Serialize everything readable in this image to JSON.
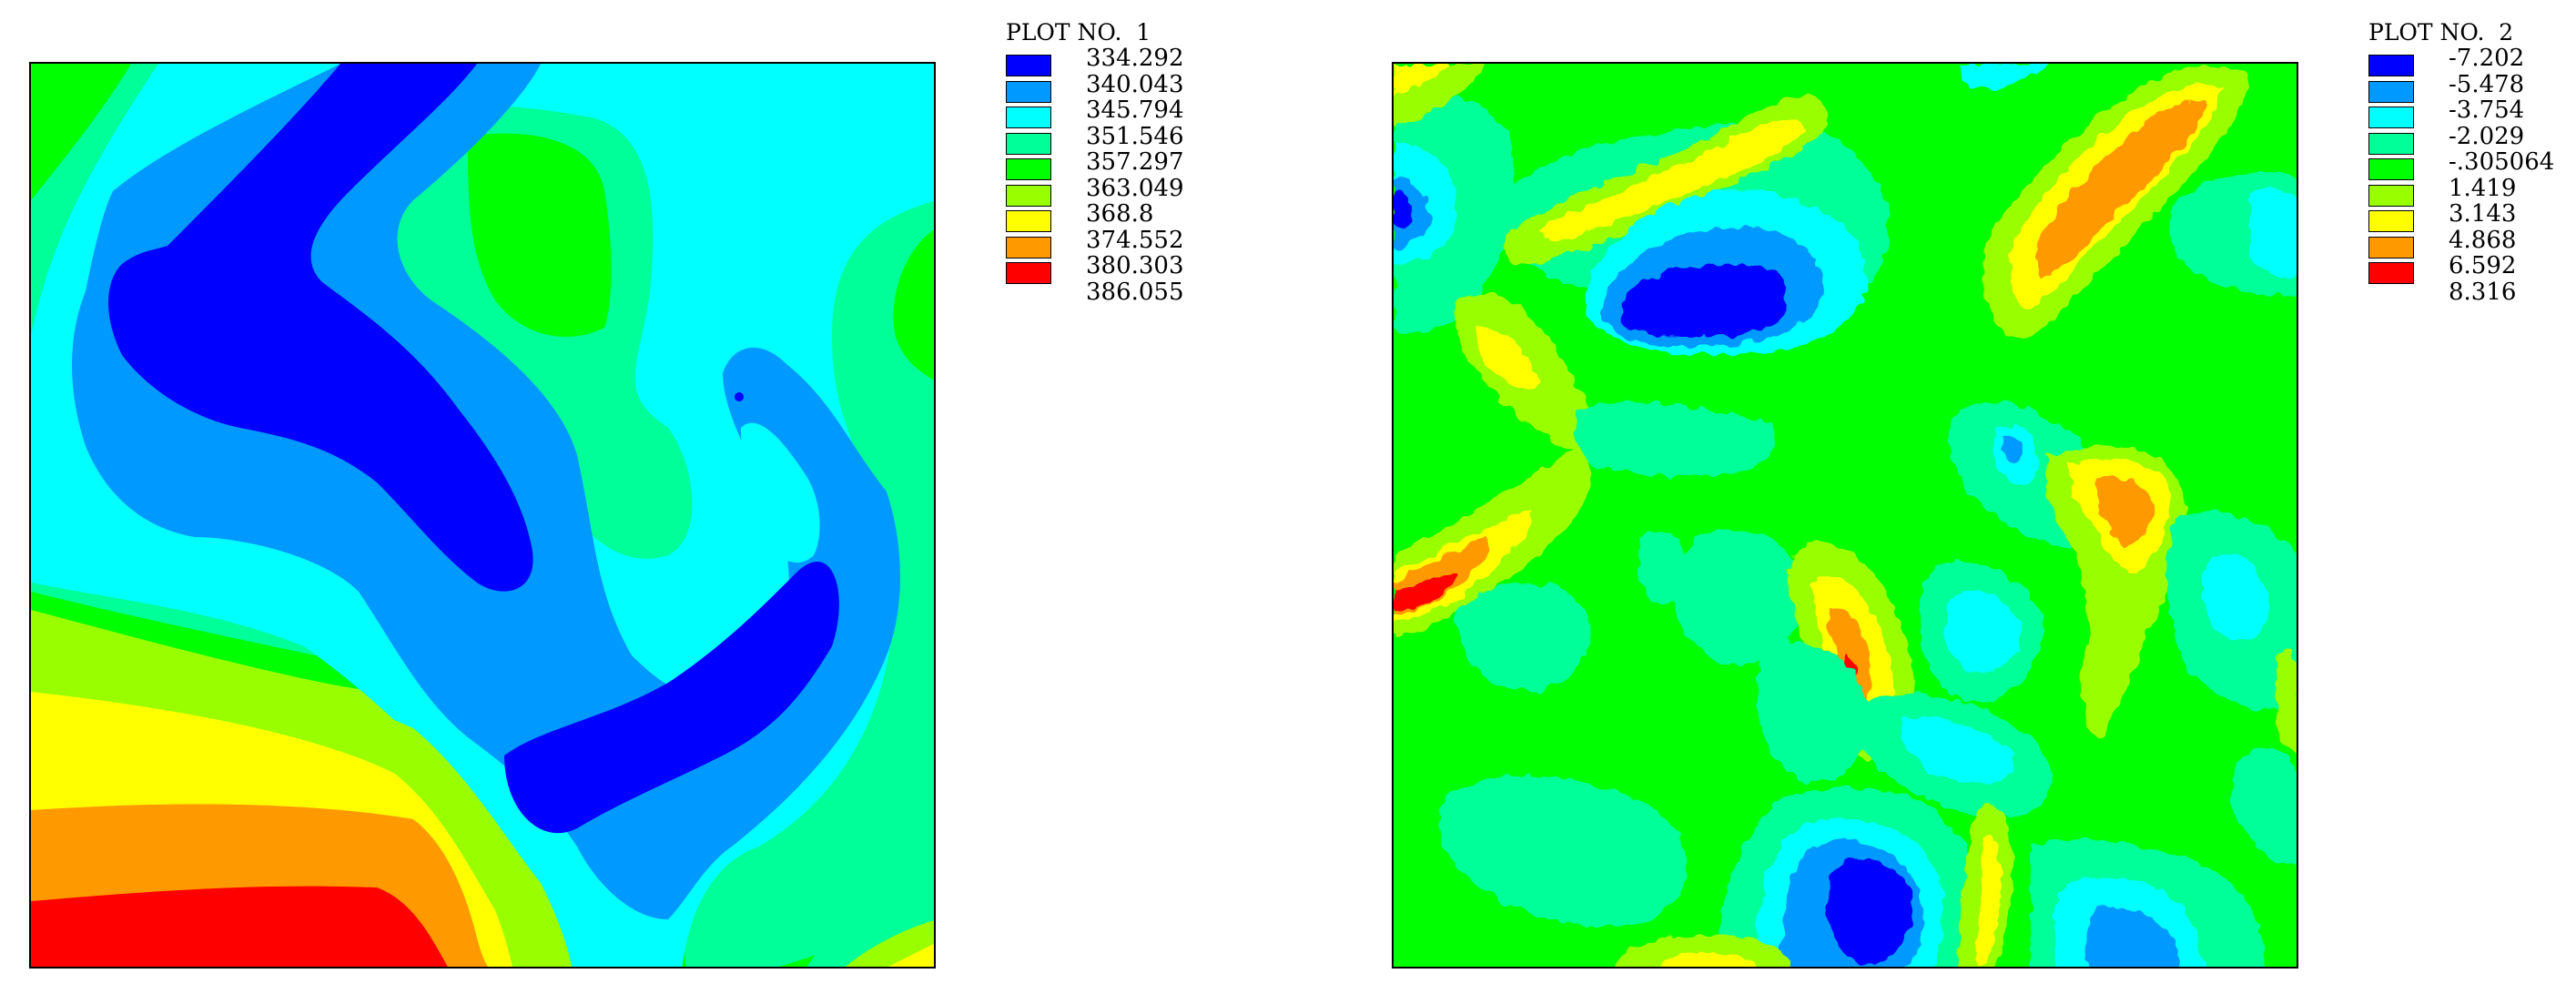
{
  "palette": [
    "#0000ff",
    "#0099ff",
    "#00ffff",
    "#00ff99",
    "#00ff00",
    "#99ff00",
    "#ffff00",
    "#ff9900",
    "#ff0000"
  ],
  "chart_data": [
    {
      "type": "heatmap",
      "title": "PLOT NO.  1",
      "legend_position": "top-right",
      "levels": [
        "334.292",
        "340.043",
        "345.794",
        "351.546",
        "357.297",
        "363.049",
        "368.8",
        "374.552",
        "380.303",
        "386.055"
      ],
      "vmin": 334.292,
      "vmax": 386.055
    },
    {
      "type": "heatmap",
      "title": "PLOT NO.  2",
      "legend_position": "top-right",
      "levels": [
        "-7.202",
        "-5.478",
        "-3.754",
        "-2.029",
        "-.305064",
        "1.419",
        "3.143",
        "4.868",
        "6.592",
        "8.316"
      ],
      "vmin": -7.202,
      "vmax": 8.316
    }
  ]
}
